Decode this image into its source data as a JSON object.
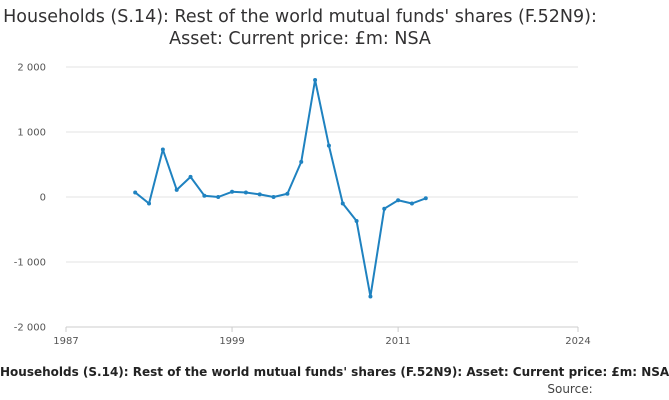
{
  "chart_data": {
    "type": "line",
    "title": "Households (S.14): Rest of the world mutual funds' shares (F.52N9): Asset: Current price: £m: NSA",
    "x_ticks": [
      "1987",
      "1999",
      "2011",
      "2024"
    ],
    "y_ticks": [
      "2 000",
      "1 000",
      "0",
      "-1 000",
      "-2 000"
    ],
    "xlim": [
      1987,
      2024
    ],
    "ylim": [
      -2000,
      2000
    ],
    "grid": "horizontal",
    "series": [
      {
        "color": "#1f82c0",
        "x": [
          1992,
          1993,
          1994,
          1995,
          1996,
          1997,
          1998,
          1999,
          2000,
          2001,
          2002,
          2003,
          2004,
          2005,
          2006,
          2007,
          2008,
          2009,
          2010,
          2011,
          2012,
          2013
        ],
        "y": [
          70,
          -100,
          730,
          110,
          310,
          20,
          0,
          80,
          70,
          40,
          0,
          50,
          540,
          1800,
          790,
          -100,
          -370,
          -1530,
          -180,
          -50,
          -100,
          -20
        ]
      }
    ]
  },
  "footer": {
    "title": "Households (S.14): Rest of the world mutual funds' shares (F.52N9): Asset: Current price: £m: NSA",
    "source": "Source:"
  }
}
